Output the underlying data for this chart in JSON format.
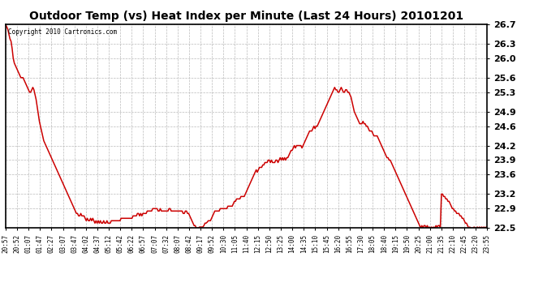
{
  "title": "Outdoor Temp (vs) Heat Index per Minute (Last 24 Hours) 20101201",
  "copyright": "Copyright 2010 Cartronics.com",
  "line_color": "#cc0000",
  "background_color": "#ffffff",
  "grid_color": "#bbbbbb",
  "ylim": [
    22.5,
    26.7
  ],
  "yticks": [
    22.5,
    22.9,
    23.2,
    23.6,
    23.9,
    24.2,
    24.6,
    24.9,
    25.3,
    25.6,
    26.0,
    26.3,
    26.7
  ],
  "xtick_labels": [
    "20:57",
    "20:52",
    "01:07",
    "01:47",
    "02:27",
    "03:07",
    "03:47",
    "04:02",
    "04:37",
    "05:12",
    "05:42",
    "06:22",
    "06:57",
    "07:07",
    "07:32",
    "08:07",
    "08:42",
    "09:17",
    "09:52",
    "10:30",
    "11:05",
    "11:40",
    "12:15",
    "12:50",
    "13:25",
    "14:00",
    "14:35",
    "15:10",
    "15:45",
    "16:20",
    "16:55",
    "17:30",
    "18:05",
    "18:40",
    "19:15",
    "19:50",
    "20:25",
    "21:00",
    "21:35",
    "22:10",
    "22:45",
    "23:20",
    "23:55"
  ],
  "n_xtick_labels": 43,
  "y_values": [
    26.7,
    26.65,
    26.6,
    26.5,
    26.4,
    26.35,
    26.2,
    26.0,
    25.9,
    25.85,
    25.8,
    25.75,
    25.7,
    25.65,
    25.6,
    25.6,
    25.6,
    25.55,
    25.5,
    25.45,
    25.4,
    25.35,
    25.3,
    25.3,
    25.35,
    25.4,
    25.35,
    25.25,
    25.15,
    25.0,
    24.85,
    24.7,
    24.6,
    24.5,
    24.4,
    24.3,
    24.25,
    24.2,
    24.15,
    24.1,
    24.05,
    24.0,
    23.95,
    23.9,
    23.85,
    23.8,
    23.75,
    23.7,
    23.65,
    23.6,
    23.55,
    23.5,
    23.45,
    23.4,
    23.35,
    23.3,
    23.25,
    23.2,
    23.15,
    23.1,
    23.05,
    23.0,
    22.95,
    22.9,
    22.85,
    22.8,
    22.8,
    22.75,
    22.75,
    22.8,
    22.75,
    22.75,
    22.75,
    22.7,
    22.65,
    22.7,
    22.65,
    22.65,
    22.7,
    22.65,
    22.7,
    22.65,
    22.6,
    22.65,
    22.6,
    22.65,
    22.6,
    22.65,
    22.6,
    22.6,
    22.65,
    22.6,
    22.6,
    22.65,
    22.6,
    22.6,
    22.6,
    22.65,
    22.65,
    22.65,
    22.65,
    22.65,
    22.65,
    22.65,
    22.65,
    22.65,
    22.7,
    22.7,
    22.7,
    22.7,
    22.7,
    22.7,
    22.7,
    22.7,
    22.7,
    22.7,
    22.7,
    22.75,
    22.75,
    22.75,
    22.75,
    22.8,
    22.8,
    22.75,
    22.8,
    22.75,
    22.8,
    22.8,
    22.8,
    22.8,
    22.85,
    22.85,
    22.85,
    22.85,
    22.85,
    22.9,
    22.9,
    22.9,
    22.9,
    22.9,
    22.85,
    22.85,
    22.9,
    22.85,
    22.85,
    22.85,
    22.85,
    22.85,
    22.85,
    22.85,
    22.9,
    22.9,
    22.85,
    22.85,
    22.85,
    22.85,
    22.85,
    22.85,
    22.85,
    22.85,
    22.85,
    22.85,
    22.85,
    22.8,
    22.8,
    22.85,
    22.85,
    22.8,
    22.8,
    22.75,
    22.7,
    22.65,
    22.6,
    22.55,
    22.55,
    22.5,
    22.5,
    22.5,
    22.52,
    22.52,
    22.52,
    22.52,
    22.55,
    22.6,
    22.6,
    22.62,
    22.65,
    22.65,
    22.65,
    22.7,
    22.75,
    22.8,
    22.85,
    22.85,
    22.85,
    22.85,
    22.85,
    22.9,
    22.9,
    22.9,
    22.9,
    22.9,
    22.9,
    22.9,
    22.95,
    22.95,
    22.95,
    22.95,
    22.95,
    23.0,
    23.05,
    23.05,
    23.1,
    23.1,
    23.1,
    23.1,
    23.15,
    23.15,
    23.15,
    23.15,
    23.2,
    23.25,
    23.3,
    23.35,
    23.4,
    23.45,
    23.5,
    23.55,
    23.6,
    23.65,
    23.7,
    23.65,
    23.7,
    23.75,
    23.75,
    23.75,
    23.8,
    23.8,
    23.85,
    23.85,
    23.85,
    23.9,
    23.9,
    23.85,
    23.9,
    23.85,
    23.85,
    23.85,
    23.9,
    23.9,
    23.85,
    23.9,
    23.95,
    23.9,
    23.95,
    23.9,
    23.95,
    23.9,
    23.95,
    23.95,
    24.0,
    24.05,
    24.1,
    24.1,
    24.15,
    24.2,
    24.15,
    24.2,
    24.2,
    24.2,
    24.2,
    24.2,
    24.15,
    24.2,
    24.25,
    24.3,
    24.35,
    24.4,
    24.45,
    24.5,
    24.5,
    24.5,
    24.55,
    24.6,
    24.55,
    24.6,
    24.6,
    24.65,
    24.7,
    24.75,
    24.8,
    24.85,
    24.9,
    24.95,
    25.0,
    25.05,
    25.1,
    25.15,
    25.2,
    25.25,
    25.3,
    25.35,
    25.4,
    25.35,
    25.35,
    25.3,
    25.3,
    25.35,
    25.4,
    25.35,
    25.3,
    25.3,
    25.35,
    25.35,
    25.3,
    25.3,
    25.25,
    25.2,
    25.1,
    25.0,
    24.9,
    24.85,
    24.8,
    24.75,
    24.7,
    24.65,
    24.65,
    24.65,
    24.7,
    24.65,
    24.65,
    24.6,
    24.6,
    24.55,
    24.5,
    24.5,
    24.5,
    24.45,
    24.4,
    24.4,
    24.4,
    24.4,
    24.35,
    24.3,
    24.25,
    24.2,
    24.15,
    24.1,
    24.05,
    24.0,
    23.95,
    23.95,
    23.9,
    23.9,
    23.85,
    23.8,
    23.75,
    23.7,
    23.65,
    23.6,
    23.55,
    23.5,
    23.45,
    23.4,
    23.35,
    23.3,
    23.25,
    23.2,
    23.15,
    23.1,
    23.05,
    23.0,
    22.95,
    22.9,
    22.85,
    22.8,
    22.75,
    22.7,
    22.65,
    22.6,
    22.55,
    22.5,
    22.55,
    22.5,
    22.55,
    22.55,
    22.5,
    22.55,
    22.5,
    22.52,
    22.5,
    22.52,
    22.5,
    22.52,
    22.5,
    22.55,
    22.52,
    22.55,
    22.55,
    22.52,
    23.2,
    23.2,
    23.15,
    23.15,
    23.1,
    23.1,
    23.05,
    23.05,
    23.0,
    22.95,
    22.9,
    22.9,
    22.85,
    22.85,
    22.8,
    22.8,
    22.8,
    22.75,
    22.75,
    22.7,
    22.7,
    22.65,
    22.6,
    22.6,
    22.55,
    22.5,
    22.52,
    22.5,
    22.5,
    22.5,
    22.52,
    22.5,
    22.5,
    22.52,
    22.5,
    22.52,
    22.5,
    22.52,
    22.5,
    22.52,
    22.5,
    22.52,
    22.5
  ]
}
